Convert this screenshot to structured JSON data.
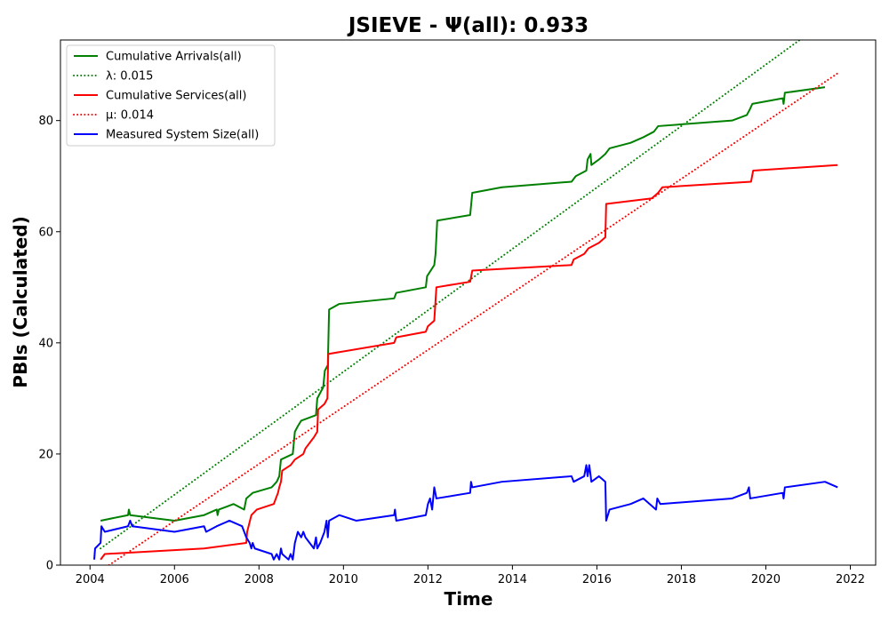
{
  "chart_data": {
    "type": "line",
    "title": "JSIEVE -  Ψ(all): 0.933",
    "xlabel": "Time",
    "ylabel": "PBIs (Calculated)",
    "xlim": [
      2003.3,
      2022.6
    ],
    "ylim": [
      0,
      94.5
    ],
    "xticks": [
      2004,
      2006,
      2008,
      2010,
      2012,
      2014,
      2016,
      2018,
      2020,
      2022
    ],
    "yticks": [
      0,
      20,
      40,
      60,
      80
    ],
    "grid": false,
    "legend_position": "top-left",
    "series": [
      {
        "name": "Cumulative Arrivals(all)",
        "color": "#008000",
        "style": "solid",
        "points": [
          [
            2004.25,
            8
          ],
          [
            2004.9,
            9
          ],
          [
            2004.92,
            10
          ],
          [
            2004.95,
            9
          ],
          [
            2006.0,
            8
          ],
          [
            2006.7,
            9
          ],
          [
            2007.0,
            10
          ],
          [
            2007.02,
            9
          ],
          [
            2007.05,
            10
          ],
          [
            2007.4,
            11
          ],
          [
            2007.65,
            10
          ],
          [
            2007.7,
            12
          ],
          [
            2007.85,
            13
          ],
          [
            2008.3,
            14
          ],
          [
            2008.42,
            15
          ],
          [
            2008.48,
            16
          ],
          [
            2008.52,
            19
          ],
          [
            2008.8,
            20
          ],
          [
            2008.85,
            24
          ],
          [
            2008.92,
            25
          ],
          [
            2009.0,
            26
          ],
          [
            2009.35,
            27
          ],
          [
            2009.38,
            30
          ],
          [
            2009.45,
            31
          ],
          [
            2009.52,
            32
          ],
          [
            2009.56,
            35
          ],
          [
            2009.63,
            36
          ],
          [
            2009.66,
            46
          ],
          [
            2009.9,
            47
          ],
          [
            2011.2,
            48
          ],
          [
            2011.25,
            49
          ],
          [
            2011.95,
            50
          ],
          [
            2011.98,
            52
          ],
          [
            2012.15,
            54
          ],
          [
            2012.18,
            56
          ],
          [
            2012.22,
            62
          ],
          [
            2013.0,
            63
          ],
          [
            2013.05,
            67
          ],
          [
            2013.75,
            68
          ],
          [
            2015.4,
            69
          ],
          [
            2015.5,
            70
          ],
          [
            2015.75,
            71
          ],
          [
            2015.78,
            73
          ],
          [
            2015.85,
            74
          ],
          [
            2015.87,
            72
          ],
          [
            2016.05,
            73
          ],
          [
            2016.2,
            74
          ],
          [
            2016.3,
            75
          ],
          [
            2016.8,
            76
          ],
          [
            2017.1,
            77
          ],
          [
            2017.35,
            78
          ],
          [
            2017.45,
            79
          ],
          [
            2019.2,
            80
          ],
          [
            2019.55,
            81
          ],
          [
            2019.62,
            82
          ],
          [
            2019.68,
            83
          ],
          [
            2020.4,
            84
          ],
          [
            2020.42,
            83
          ],
          [
            2020.45,
            85
          ],
          [
            2021.4,
            86
          ]
        ]
      },
      {
        "name": "λ: 0.015",
        "color": "#008000",
        "style": "dotted",
        "points": [
          [
            2004.25,
            3
          ],
          [
            2020.8,
            94.5
          ]
        ]
      },
      {
        "name": "Cumulative Services(all)",
        "color": "#ff0000",
        "style": "solid",
        "points": [
          [
            2004.25,
            1
          ],
          [
            2004.35,
            2
          ],
          [
            2006.7,
            3
          ],
          [
            2007.7,
            4
          ],
          [
            2007.72,
            6
          ],
          [
            2007.82,
            9
          ],
          [
            2007.95,
            10
          ],
          [
            2008.35,
            11
          ],
          [
            2008.45,
            13
          ],
          [
            2008.48,
            14
          ],
          [
            2008.52,
            15
          ],
          [
            2008.55,
            17
          ],
          [
            2008.75,
            18
          ],
          [
            2008.85,
            19
          ],
          [
            2009.05,
            20
          ],
          [
            2009.1,
            21
          ],
          [
            2009.3,
            23
          ],
          [
            2009.38,
            24
          ],
          [
            2009.4,
            28
          ],
          [
            2009.55,
            29
          ],
          [
            2009.62,
            30
          ],
          [
            2009.64,
            38
          ],
          [
            2011.2,
            40
          ],
          [
            2011.25,
            41
          ],
          [
            2011.95,
            42
          ],
          [
            2012.0,
            43
          ],
          [
            2012.15,
            44
          ],
          [
            2012.2,
            50
          ],
          [
            2013.0,
            51
          ],
          [
            2013.05,
            53
          ],
          [
            2015.4,
            54
          ],
          [
            2015.45,
            55
          ],
          [
            2015.7,
            56
          ],
          [
            2015.8,
            57
          ],
          [
            2016.05,
            58
          ],
          [
            2016.2,
            59
          ],
          [
            2016.22,
            65
          ],
          [
            2017.3,
            66
          ],
          [
            2017.45,
            67
          ],
          [
            2017.55,
            68
          ],
          [
            2019.65,
            69
          ],
          [
            2019.7,
            71
          ],
          [
            2021.7,
            72
          ]
        ]
      },
      {
        "name": "μ: 0.014",
        "color": "#ff0000",
        "style": "dotted",
        "points": [
          [
            2004.45,
            0
          ],
          [
            2021.7,
            88.5
          ]
        ]
      },
      {
        "name": "Measured System Size(all)",
        "color": "#0000ff",
        "style": "solid",
        "points": [
          [
            2004.1,
            1
          ],
          [
            2004.12,
            3
          ],
          [
            2004.25,
            4
          ],
          [
            2004.27,
            7
          ],
          [
            2004.35,
            6
          ],
          [
            2004.9,
            7
          ],
          [
            2004.95,
            8
          ],
          [
            2005.0,
            7
          ],
          [
            2006.0,
            6
          ],
          [
            2006.7,
            7
          ],
          [
            2006.75,
            6
          ],
          [
            2007.0,
            7
          ],
          [
            2007.3,
            8
          ],
          [
            2007.6,
            7
          ],
          [
            2007.7,
            5
          ],
          [
            2007.78,
            4
          ],
          [
            2007.82,
            3
          ],
          [
            2007.85,
            4
          ],
          [
            2007.9,
            3
          ],
          [
            2008.3,
            2
          ],
          [
            2008.35,
            1
          ],
          [
            2008.42,
            2
          ],
          [
            2008.48,
            1
          ],
          [
            2008.52,
            3
          ],
          [
            2008.55,
            2
          ],
          [
            2008.7,
            1
          ],
          [
            2008.75,
            2
          ],
          [
            2008.8,
            1
          ],
          [
            2008.85,
            4
          ],
          [
            2008.92,
            6
          ],
          [
            2009.0,
            5
          ],
          [
            2009.05,
            6
          ],
          [
            2009.1,
            5
          ],
          [
            2009.3,
            3
          ],
          [
            2009.35,
            5
          ],
          [
            2009.38,
            3
          ],
          [
            2009.45,
            4
          ],
          [
            2009.55,
            6
          ],
          [
            2009.6,
            8
          ],
          [
            2009.63,
            5
          ],
          [
            2009.66,
            8
          ],
          [
            2009.9,
            9
          ],
          [
            2010.3,
            8
          ],
          [
            2011.2,
            9
          ],
          [
            2011.22,
            10
          ],
          [
            2011.25,
            8
          ],
          [
            2011.95,
            9
          ],
          [
            2012.0,
            11
          ],
          [
            2012.05,
            12
          ],
          [
            2012.1,
            10
          ],
          [
            2012.15,
            14
          ],
          [
            2012.2,
            12
          ],
          [
            2013.0,
            13
          ],
          [
            2013.02,
            15
          ],
          [
            2013.05,
            14
          ],
          [
            2013.75,
            15
          ],
          [
            2015.4,
            16
          ],
          [
            2015.45,
            15
          ],
          [
            2015.7,
            16
          ],
          [
            2015.75,
            18
          ],
          [
            2015.78,
            16
          ],
          [
            2015.82,
            18
          ],
          [
            2015.87,
            15
          ],
          [
            2016.05,
            16
          ],
          [
            2016.2,
            15
          ],
          [
            2016.22,
            8
          ],
          [
            2016.3,
            10
          ],
          [
            2016.8,
            11
          ],
          [
            2017.1,
            12
          ],
          [
            2017.4,
            10
          ],
          [
            2017.43,
            12
          ],
          [
            2017.5,
            11
          ],
          [
            2019.2,
            12
          ],
          [
            2019.55,
            13
          ],
          [
            2019.6,
            14
          ],
          [
            2019.63,
            12
          ],
          [
            2020.4,
            13
          ],
          [
            2020.42,
            12
          ],
          [
            2020.45,
            14
          ],
          [
            2021.4,
            15
          ],
          [
            2021.7,
            14
          ]
        ]
      }
    ]
  }
}
